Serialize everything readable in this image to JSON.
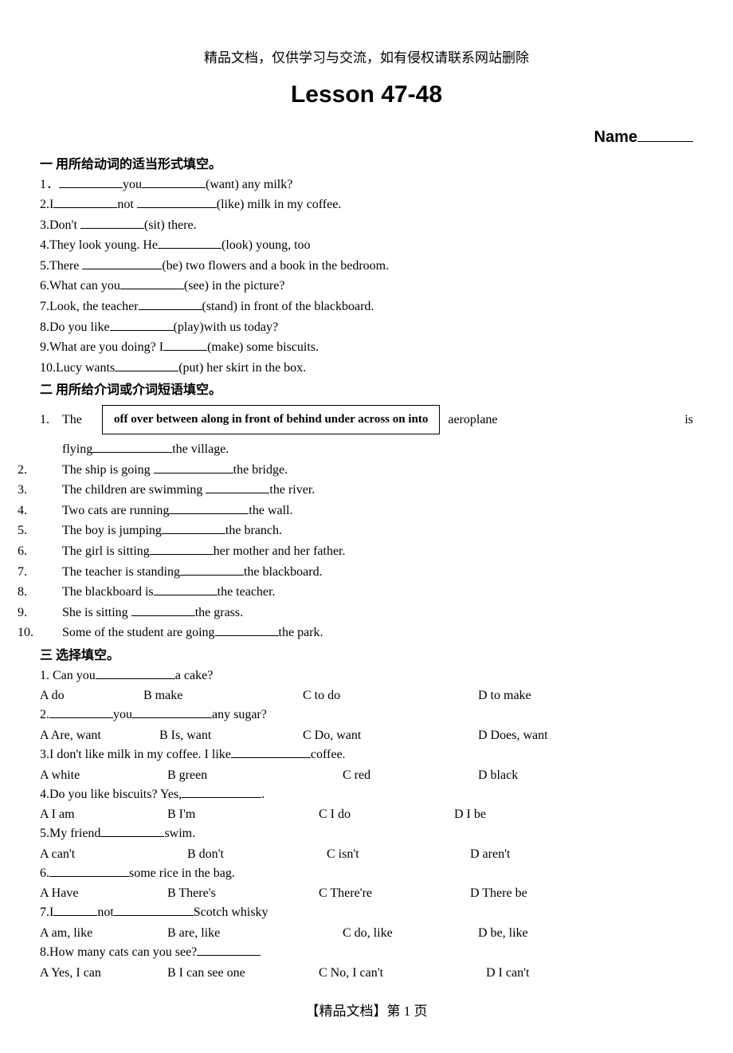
{
  "header_note": "精品文档，仅供学习与交流，如有侵权请联系网站删除",
  "lesson_title": "Lesson 47-48",
  "name_label": "Name",
  "section1": {
    "title": "一  用所给动词的适当形式填空。",
    "items": [
      {
        "pre": "1．",
        "parts": [
          "",
          "you",
          "(want) any milk?"
        ],
        "blanks": [
          "m",
          "m"
        ]
      },
      {
        "pre": "2.I",
        "parts": [
          "",
          "not ",
          "(like) milk in my coffee."
        ],
        "blanks": [
          "m",
          "l"
        ]
      },
      {
        "pre": "3.Don't ",
        "parts": [
          "",
          "(sit) there."
        ],
        "blanks": [
          "m"
        ]
      },
      {
        "pre": "4.They look young. He",
        "parts": [
          "",
          "(look) young, too"
        ],
        "blanks": [
          "m"
        ]
      },
      {
        "pre": "5.There ",
        "parts": [
          "",
          "(be) two flowers and a book in the bedroom."
        ],
        "blanks": [
          "l"
        ]
      },
      {
        "pre": "6.What can you",
        "parts": [
          "",
          "(see) in the picture?"
        ],
        "blanks": [
          "m"
        ]
      },
      {
        "pre": "7.Look, the teacher",
        "parts": [
          "",
          "(stand) in front of the blackboard."
        ],
        "blanks": [
          "m"
        ]
      },
      {
        "pre": "8.Do you like",
        "parts": [
          "",
          "(play)with us today?"
        ],
        "blanks": [
          "m"
        ]
      },
      {
        "pre": "9.What are you doing?   I",
        "parts": [
          "",
          "(make) some biscuits."
        ],
        "blanks": [
          "s"
        ]
      },
      {
        "pre": "10.Lucy wants",
        "parts": [
          "",
          "(put) her skirt in the box."
        ],
        "blanks": [
          "m"
        ]
      }
    ]
  },
  "section2": {
    "title": "二  用所给介词或介词短语填空。",
    "lead_num": "1.",
    "lead_left": "The",
    "box_words": "off    over    between    along    in front of    behind    under    across    on    into",
    "lead_right_1": "aeroplane",
    "lead_right_2": "is",
    "lead_cont_pre": "flying",
    "lead_cont_post": "the village.",
    "items": [
      {
        "n": "2.",
        "pre": "The ship is going ",
        "post": "the bridge.",
        "b": "l"
      },
      {
        "n": "3.",
        "pre": "The children are swimming ",
        "post": "the river.",
        "b": "m"
      },
      {
        "n": "4.",
        "pre": "Two cats are running",
        "post": "the wall.",
        "b": "l"
      },
      {
        "n": "5.",
        "pre": "The boy is jumping",
        "post": "the branch.",
        "b": "m"
      },
      {
        "n": "6.",
        "pre": "The girl is sitting",
        "post": "her mother and her father.",
        "b": "m"
      },
      {
        "n": "7.",
        "pre": "The teacher is standing",
        "post": "the blackboard.",
        "b": "m"
      },
      {
        "n": "8.",
        "pre": "The blackboard is",
        "post": "the teacher.",
        "b": "m"
      },
      {
        "n": "9.",
        "pre": "She is sitting ",
        "post": "the grass.",
        "b": "m"
      },
      {
        "n": "10.",
        "pre": "Some of the student are going",
        "post": "the park.",
        "b": "m"
      }
    ]
  },
  "section3": {
    "title": "三  选择填空。",
    "questions": [
      {
        "q_pre": "1.   Can you",
        "q_post": "a cake?",
        "b": "l",
        "opts": [
          [
            "A do",
            0
          ],
          [
            "B make",
            130
          ],
          [
            "C to do",
            330
          ],
          [
            "D to make",
            550
          ]
        ]
      },
      {
        "q_pre": "2.",
        "q_mid": "you",
        "q_post": "any sugar?",
        "b1": "m",
        "b2": "l",
        "opts": [
          [
            "A Are, want",
            0
          ],
          [
            "B Is, want",
            150
          ],
          [
            "C Do, want",
            330
          ],
          [
            "D Does, want",
            550
          ]
        ]
      },
      {
        "q_pre": "3.I don't like milk in my coffee. I like",
        "q_post": "coffee.",
        "b": "l",
        "opts": [
          [
            "A white",
            0
          ],
          [
            "B green",
            160
          ],
          [
            "C red",
            380
          ],
          [
            "D black",
            550
          ]
        ]
      },
      {
        "q_pre": "4.Do you like biscuits? Yes,",
        "q_post": ".",
        "b": "l",
        "opts": [
          [
            "A I am",
            0
          ],
          [
            "B I'm",
            160
          ],
          [
            "C I do",
            350
          ],
          [
            "D I be",
            520
          ]
        ]
      },
      {
        "q_pre": "5.My friend",
        "q_post": "swim.",
        "b": "m",
        "opts": [
          [
            "A can't",
            0
          ],
          [
            "B don't",
            185
          ],
          [
            "C isn't",
            360
          ],
          [
            "D aren't",
            540
          ]
        ]
      },
      {
        "q_pre": "6.",
        "q_post": "some rice in the bag.",
        "b": "l",
        "opts": [
          [
            "A Have",
            0
          ],
          [
            "B There's",
            160
          ],
          [
            "C There're",
            350
          ],
          [
            "D There be",
            540
          ]
        ]
      },
      {
        "q_pre": "7.I",
        "q_mid": "not",
        "q_post": "Scotch whisky",
        "b1": "s",
        "b2": "l",
        "opts": [
          [
            "A am, like",
            0
          ],
          [
            "B are, like",
            160
          ],
          [
            "C do, like",
            380
          ],
          [
            "D be, like",
            550
          ]
        ]
      },
      {
        "q_pre": "8.How many cats can you see?",
        "q_post": "",
        "b": "m",
        "opts": [
          [
            "A Yes, I can",
            0
          ],
          [
            "B I can see one",
            160
          ],
          [
            "C No, I can't",
            350
          ],
          [
            "D I can't",
            560
          ]
        ]
      }
    ]
  },
  "footer": "【精品文档】第 1 页"
}
